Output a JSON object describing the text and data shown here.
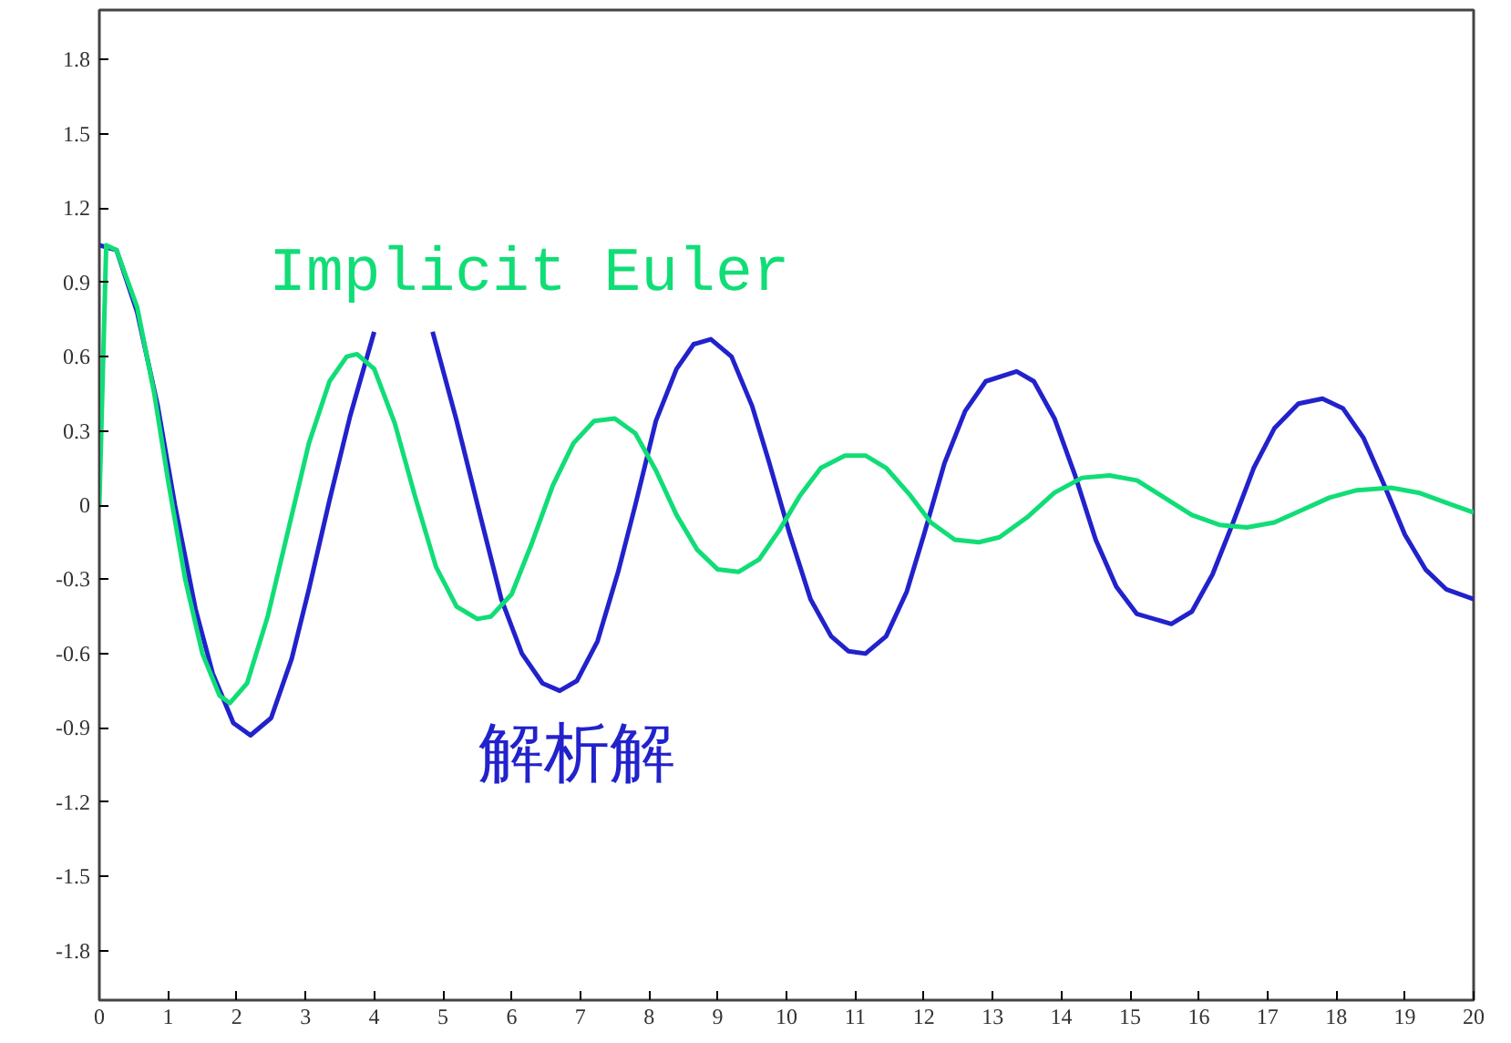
{
  "chart_data": {
    "type": "line",
    "xlim": [
      0,
      20
    ],
    "ylim": [
      -2,
      2
    ],
    "xticks": [
      0,
      1,
      2,
      3,
      4,
      5,
      6,
      7,
      8,
      9,
      10,
      11,
      12,
      13,
      14,
      15,
      16,
      17,
      18,
      19,
      20
    ],
    "yticks": [
      -1.8,
      -1.5,
      -1.2,
      -0.9,
      -0.6,
      -0.3,
      0,
      0.3,
      0.6,
      0.9,
      1.2,
      1.5,
      1.8
    ],
    "grid": false,
    "marker": "none",
    "line_style": "solid",
    "series": [
      {
        "name": "解析解",
        "color": "#2222cc",
        "x": [
          0,
          0.25,
          0.55,
          0.85,
          1.1,
          1.4,
          1.65,
          1.95,
          2.2,
          2.5,
          2.8,
          3.05,
          3.35,
          3.65,
          4.0,
          4.2,
          4.45,
          4.7,
          4.85,
          5.2,
          5.55,
          5.85,
          6.15,
          6.45,
          6.7,
          6.95,
          7.25,
          7.55,
          7.8,
          8.1,
          8.4,
          8.65,
          8.9,
          9.2,
          9.5,
          9.75,
          10.05,
          10.35,
          10.65,
          10.9,
          11.15,
          11.45,
          11.75,
          12.0,
          12.3,
          12.6,
          12.9,
          13.35,
          13.6,
          13.9,
          14.2,
          14.5,
          14.8,
          15.1,
          15.6,
          15.9,
          16.2,
          16.5,
          16.8,
          17.1,
          17.45,
          17.8,
          18.1,
          18.4,
          18.7,
          19.0,
          19.3,
          19.6,
          20
        ],
        "values": [
          1.05,
          1.03,
          0.78,
          0.4,
          0.0,
          -0.42,
          -0.68,
          -0.88,
          -0.93,
          -0.86,
          -0.62,
          -0.34,
          0.02,
          0.36,
          0.7,
          null,
          null,
          null,
          0.7,
          0.34,
          -0.05,
          -0.38,
          -0.6,
          -0.72,
          -0.75,
          -0.71,
          -0.55,
          -0.27,
          0.0,
          0.34,
          0.55,
          0.65,
          0.67,
          0.6,
          0.4,
          0.17,
          -0.12,
          -0.38,
          -0.53,
          -0.59,
          -0.6,
          -0.53,
          -0.35,
          -0.12,
          0.17,
          0.38,
          0.5,
          0.54,
          0.5,
          0.35,
          0.12,
          -0.14,
          -0.33,
          -0.44,
          -0.48,
          -0.43,
          -0.28,
          -0.07,
          0.15,
          0.31,
          0.41,
          0.43,
          0.39,
          0.27,
          0.08,
          -0.12,
          -0.26,
          -0.34,
          -0.38
        ]
      },
      {
        "name": "Implicit Euler",
        "color": "#11dd77",
        "x": [
          0,
          0.1,
          0.25,
          0.55,
          0.8,
          1.0,
          1.25,
          1.5,
          1.75,
          1.9,
          2.15,
          2.45,
          2.75,
          3.05,
          3.35,
          3.6,
          3.75,
          4.0,
          4.3,
          4.6,
          4.9,
          5.2,
          5.5,
          5.7,
          6.0,
          6.3,
          6.6,
          6.9,
          7.2,
          7.5,
          7.8,
          8.1,
          8.4,
          8.7,
          9.0,
          9.3,
          9.6,
          9.9,
          10.2,
          10.5,
          10.85,
          11.15,
          11.45,
          11.8,
          12.1,
          12.45,
          12.8,
          13.1,
          13.5,
          13.9,
          14.3,
          14.7,
          15.1,
          15.5,
          15.9,
          16.3,
          16.7,
          17.1,
          17.5,
          17.9,
          18.3,
          18.8,
          19.2,
          19.6,
          20
        ],
        "values": [
          0,
          1.05,
          1.03,
          0.8,
          0.45,
          0.1,
          -0.3,
          -0.6,
          -0.77,
          -0.8,
          -0.72,
          -0.45,
          -0.1,
          0.25,
          0.5,
          0.6,
          0.61,
          0.55,
          0.33,
          0.03,
          -0.25,
          -0.41,
          -0.46,
          -0.45,
          -0.36,
          -0.15,
          0.08,
          0.25,
          0.34,
          0.35,
          0.29,
          0.14,
          -0.04,
          -0.18,
          -0.26,
          -0.27,
          -0.22,
          -0.1,
          0.04,
          0.15,
          0.2,
          0.2,
          0.15,
          0.04,
          -0.07,
          -0.14,
          -0.15,
          -0.13,
          -0.05,
          0.05,
          0.11,
          0.12,
          0.1,
          0.03,
          -0.04,
          -0.08,
          -0.09,
          -0.07,
          -0.02,
          0.03,
          0.06,
          0.07,
          0.05,
          0.01,
          -0.03
        ]
      }
    ]
  }
}
